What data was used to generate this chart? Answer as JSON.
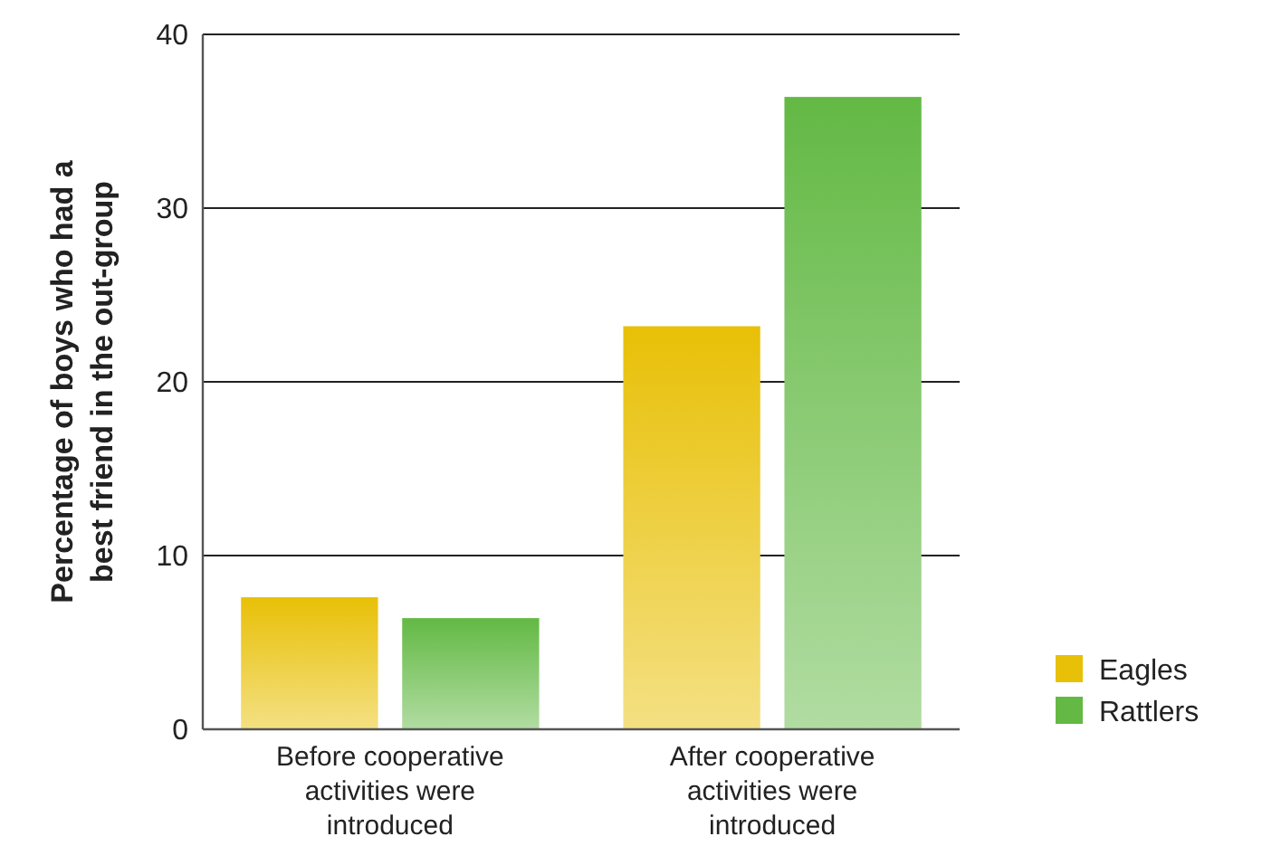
{
  "chart_data": {
    "type": "bar",
    "ylabel": "Percentage of boys who had a best friend in the out-group",
    "categories": [
      "Before cooperative activities were introduced",
      "After cooperative activities were introduced"
    ],
    "series": [
      {
        "name": "Eagles",
        "color": "#e8c007",
        "values": [
          7.6,
          23.2
        ]
      },
      {
        "name": "Rattlers",
        "color": "#63b944",
        "values": [
          6.4,
          36.4
        ]
      }
    ],
    "ylim": [
      0,
      40
    ],
    "yticks": [
      0,
      10,
      20,
      30,
      40
    ],
    "grid": "y",
    "legend": "bottom right"
  }
}
